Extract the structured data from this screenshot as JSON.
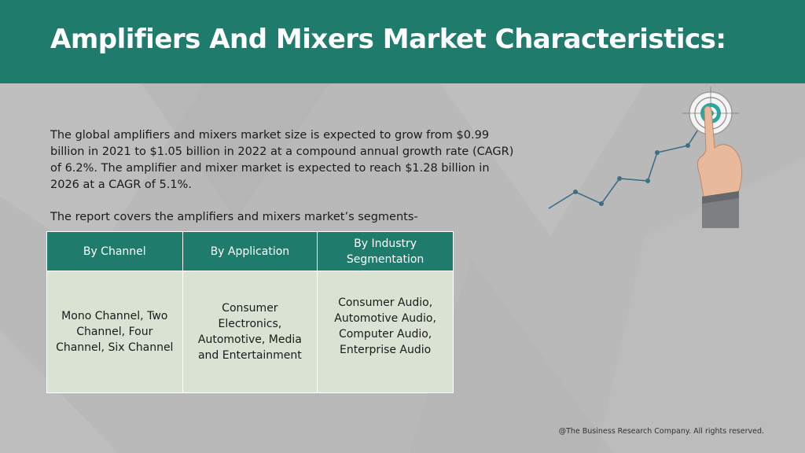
{
  "title": "Amplifiers And Mixers Market Characteristics:",
  "paragraph": "The global amplifiers and mixers market size is expected to grow from $0.99 billion in 2021 to $1.05 billion in 2022 at a compound annual growth rate (CAGR) of 6.2%. The amplifier and mixer market is expected to reach $1.28 billion in 2026 at a CAGR of 5.1%.",
  "segments_intro": "The report covers the amplifiers and mixers market’s segments-",
  "table": {
    "headers": [
      "By Channel",
      "By Application",
      "By Industry Segmentation"
    ],
    "cells": [
      "Mono Channel, Two Channel, Four Channel, Six Channel",
      "Consumer Electronics, Automotive, Media and Entertainment",
      "Consumer Audio, Automotive Audio, Computer Audio, Enterprise Audio"
    ]
  },
  "footer": "@The Business Research Company. All rights reserved.",
  "colors": {
    "header_bg": "#1f7b6b",
    "background": "#b9b9b9",
    "table_body": "#d9e2d3",
    "target_accent": "#2aa6a0"
  },
  "illustration": {
    "icon": "growth-chart-with-hand-touching-target-icon"
  }
}
